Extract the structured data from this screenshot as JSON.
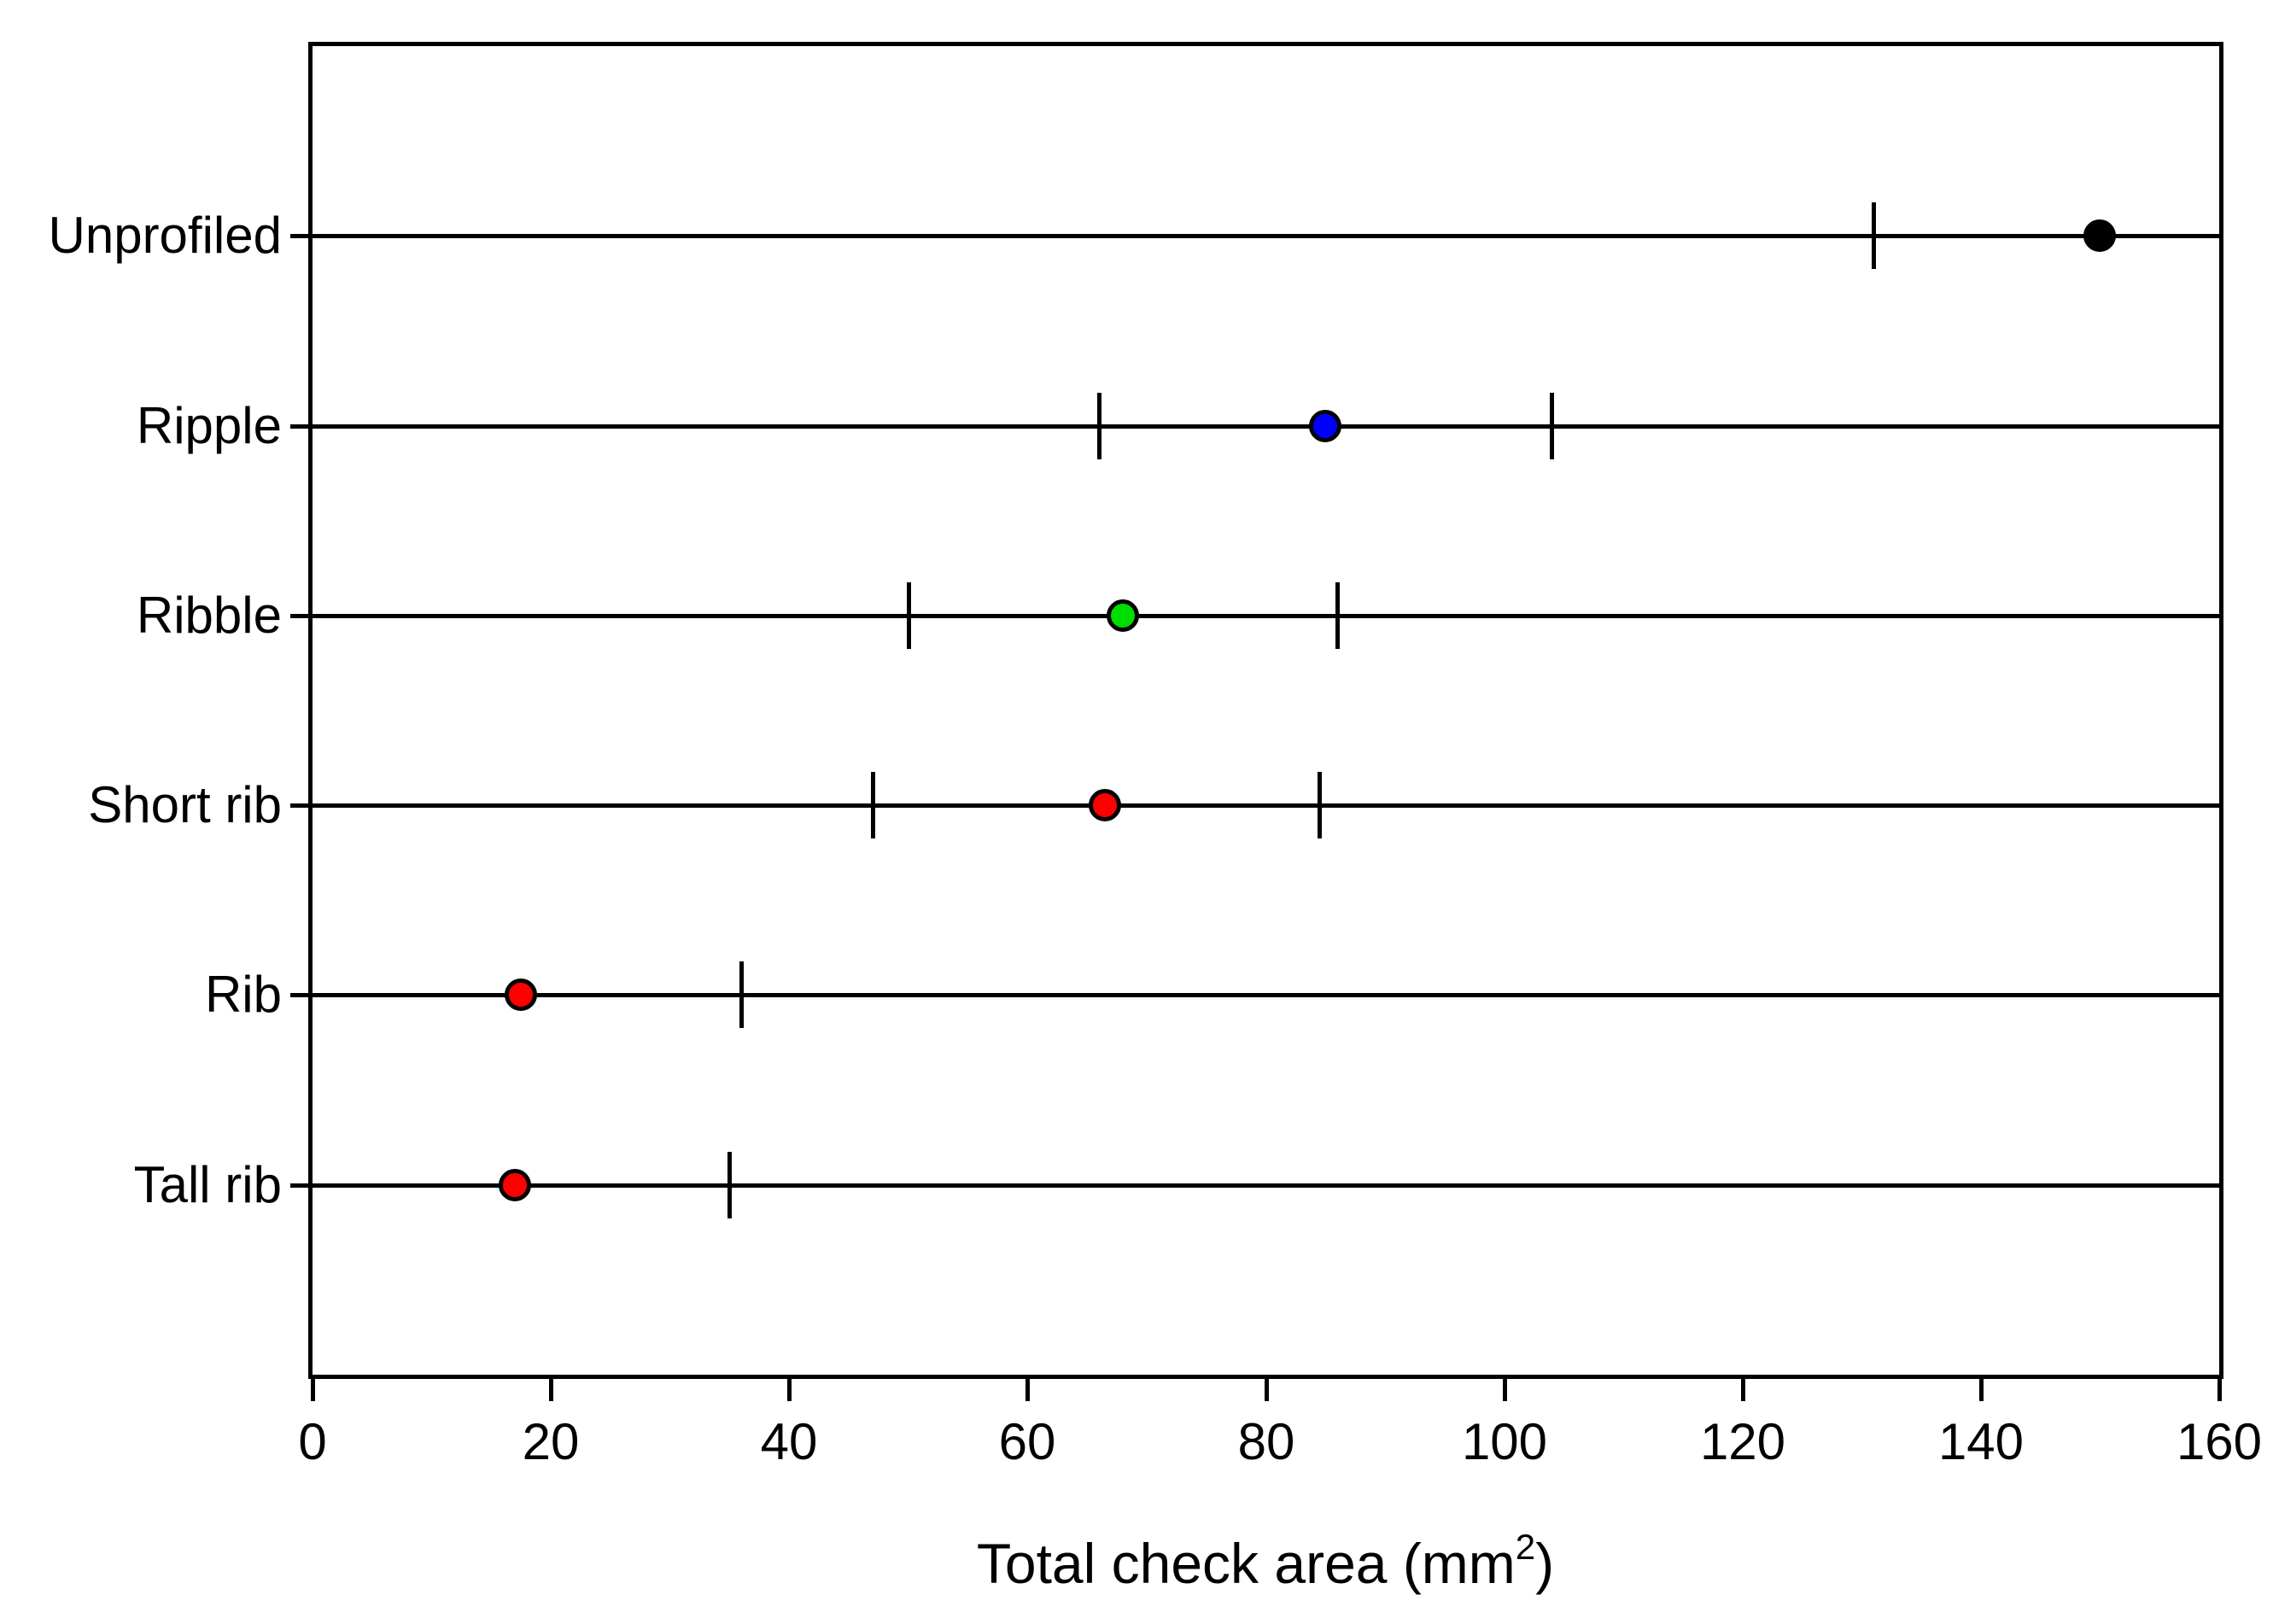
{
  "figure": {
    "background": "#FFFFFF",
    "axis_color": "#000000"
  },
  "chart_data": {
    "type": "scatter",
    "subtype": "horizontal-dot-plot-with-error-bars",
    "title": "",
    "xlabel": {
      "full": "Total check area (mm²)",
      "main": "Total check area (mm",
      "sup": "2",
      "suffix": ")"
    },
    "ylabel": "",
    "xlim": [
      0,
      160
    ],
    "xtick_step": 20,
    "xticks": [
      0,
      20,
      40,
      60,
      80,
      100,
      120,
      140,
      160
    ],
    "grid": false,
    "legend": "none",
    "categories": [
      "Unprofiled",
      "Ripple",
      "Ribble",
      "Short rib",
      "Rib",
      "Tall rib"
    ],
    "rows": [
      {
        "label": "Unprofiled",
        "mean": 150,
        "error_ticks": [
          131
        ],
        "marker_color": "#000000"
      },
      {
        "label": "Ripple",
        "mean": 85,
        "error_ticks": [
          66,
          104
        ],
        "marker_color": "#0000FF"
      },
      {
        "label": "Ribble",
        "mean": 68,
        "error_ticks": [
          50,
          86
        ],
        "marker_color": "#00DD00"
      },
      {
        "label": "Short rib",
        "mean": 66.5,
        "error_ticks": [
          47,
          84.5
        ],
        "marker_color": "#FF0000"
      },
      {
        "label": "Rib",
        "mean": 17.5,
        "error_ticks": [
          36
        ],
        "marker_color": "#FF0000"
      },
      {
        "label": "Tall rib",
        "mean": 17,
        "error_ticks": [
          35
        ],
        "marker_color": "#FF0000"
      }
    ]
  }
}
